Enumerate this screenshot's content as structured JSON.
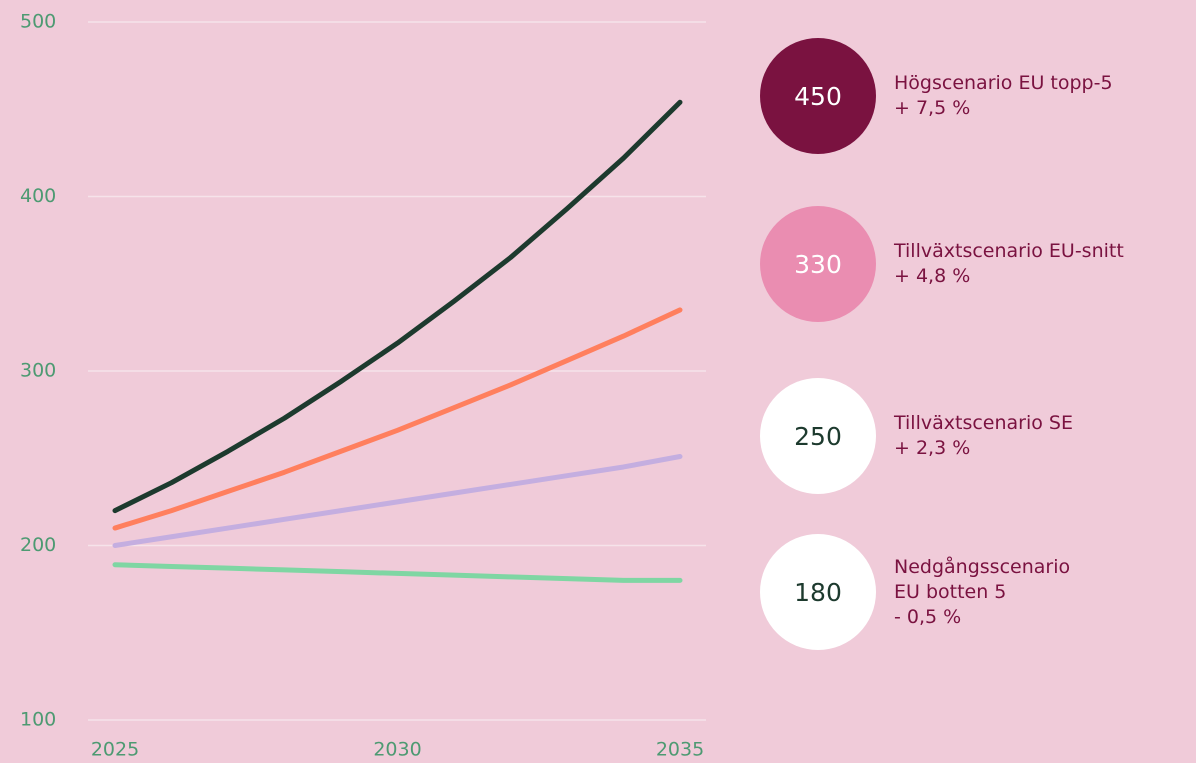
{
  "chart_data": {
    "type": "line",
    "x": [
      2025,
      2026,
      2027,
      2028,
      2029,
      2030,
      2031,
      2032,
      2033,
      2034,
      2035
    ],
    "xlim": [
      2025,
      2035
    ],
    "xticks": [
      2025,
      2030,
      2035
    ],
    "ylim": [
      100,
      500
    ],
    "yticks": [
      100,
      200,
      300,
      400,
      500
    ],
    "grid": true,
    "series": [
      {
        "name": "Högscenario EU topp-5",
        "rate": "+ 7,5 %",
        "badge": 450,
        "color": "#1d3a2e",
        "badge_color": "#7a1240",
        "badge_text_color": "#ffffff",
        "values": [
          220,
          236,
          254,
          273,
          294,
          316,
          340,
          365,
          393,
          422,
          454
        ]
      },
      {
        "name": "Tillväxtscenario EU-snitt",
        "rate": "+ 4,8 %",
        "badge": 330,
        "color": "#ff7f5e",
        "badge_color": "#ea8db1",
        "badge_text_color": "#ffffff",
        "values": [
          210,
          220,
          231,
          242,
          254,
          266,
          279,
          292,
          306,
          320,
          335
        ]
      },
      {
        "name": "Tillväxtscenario SE",
        "rate": "+ 2,3 %",
        "badge": 250,
        "color": "#c4aee0",
        "badge_color": "#ffffff",
        "badge_text_color": "#1d3a2e",
        "values": [
          200,
          205,
          210,
          215,
          220,
          225,
          230,
          235,
          240,
          245,
          251
        ]
      },
      {
        "name": "Nedgångsscenario EU botten 5",
        "rate": "- 0,5 %",
        "badge": 180,
        "color": "#7fd6a3",
        "badge_color": "#ffffff",
        "badge_text_color": "#1d3a2e",
        "values": [
          189,
          188,
          187,
          186,
          185,
          184,
          183,
          182,
          181,
          180,
          180
        ]
      }
    ]
  }
}
